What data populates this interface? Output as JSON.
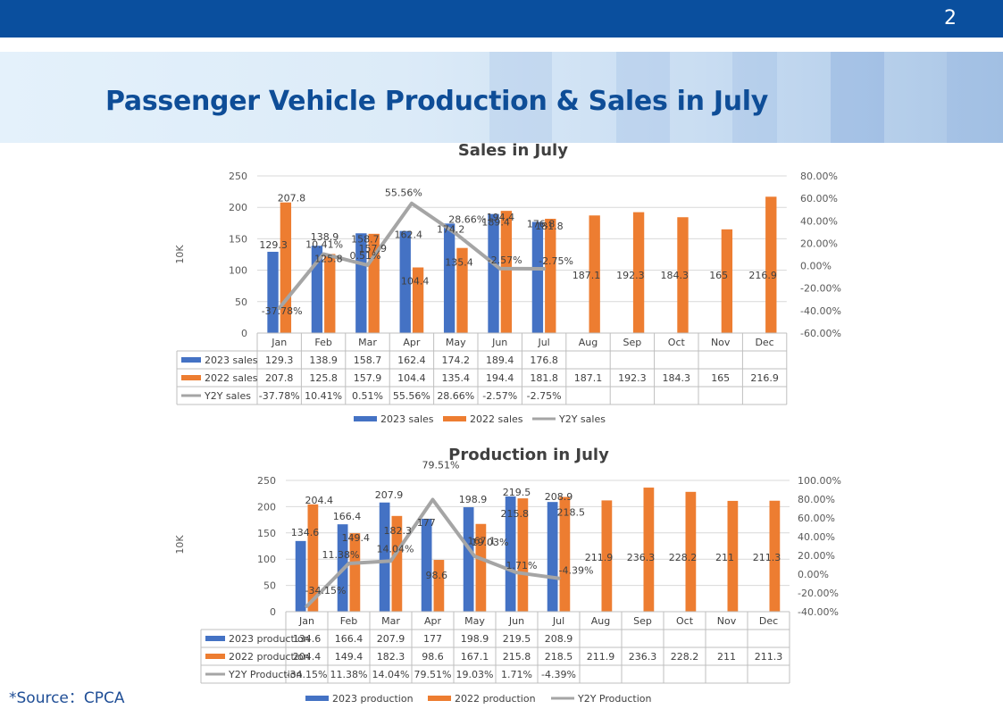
{
  "page_number": "2",
  "page_title": "Passenger Vehicle Production & Sales in July",
  "source": "*Source：CPCA",
  "colors": {
    "series_2023": "#4472c4",
    "series_2022": "#ed7d31",
    "yoy": "#a5a5a5",
    "title": "#0e4d97",
    "topbar": "#0a4f9e"
  },
  "chart_data": [
    {
      "type": "bar",
      "title": "Sales in July",
      "ylabel": "10K",
      "categories": [
        "Jan",
        "Feb",
        "Mar",
        "Apr",
        "May",
        "Jun",
        "Jul",
        "Aug",
        "Sep",
        "Oct",
        "Nov",
        "Dec"
      ],
      "ylim": [
        0,
        250
      ],
      "yticks": [
        "0",
        "50",
        "100",
        "150",
        "200",
        "250"
      ],
      "y2lim": [
        -60,
        80
      ],
      "y2ticks": [
        "-60.00%",
        "-40.00%",
        "-20.00%",
        "0.00%",
        "20.00%",
        "40.00%",
        "60.00%",
        "80.00%"
      ],
      "legend_position": "bottom",
      "series": [
        {
          "name": "2023 sales",
          "kind": "bar",
          "color": "#4472c4",
          "values": [
            129.3,
            138.9,
            158.7,
            162.4,
            174.2,
            189.4,
            176.8,
            null,
            null,
            null,
            null,
            null
          ],
          "labels": [
            "129.3",
            "138.9",
            "158.7",
            "162.4",
            "174.2",
            "189.4",
            "176.8",
            "",
            "",
            "",
            "",
            ""
          ]
        },
        {
          "name": "2022 sales",
          "kind": "bar",
          "color": "#ed7d31",
          "values": [
            207.8,
            125.8,
            157.9,
            104.4,
            135.4,
            194.4,
            181.8,
            187.1,
            192.3,
            184.3,
            165,
            216.9
          ],
          "labels": [
            "207.8",
            "125.8",
            "157.9",
            "104.4",
            "135.4",
            "194.4",
            "181.8",
            "187.1",
            "192.3",
            "184.3",
            "165",
            "216.9"
          ]
        },
        {
          "name": "Y2Y sales",
          "kind": "line",
          "axis": "secondary",
          "color": "#a5a5a5",
          "values": [
            -37.78,
            10.41,
            0.51,
            55.56,
            28.66,
            -2.57,
            -2.75,
            null,
            null,
            null,
            null,
            null
          ],
          "labels": [
            "-37.78%",
            "10.41%",
            "0.51%",
            "55.56%",
            "28.66%",
            "-2.57%",
            "-2.75%",
            "",
            "",
            "",
            "",
            ""
          ]
        }
      ]
    },
    {
      "type": "bar",
      "title": "Production in July",
      "ylabel": "10K",
      "categories": [
        "Jan",
        "Feb",
        "Mar",
        "Apr",
        "May",
        "Jun",
        "Jul",
        "Aug",
        "Sep",
        "Oct",
        "Nov",
        "Dec"
      ],
      "ylim": [
        0,
        250
      ],
      "yticks": [
        "0",
        "50",
        "100",
        "150",
        "200",
        "250"
      ],
      "y2lim": [
        -40,
        100
      ],
      "y2ticks": [
        "-40.00%",
        "-20.00%",
        "0.00%",
        "20.00%",
        "40.00%",
        "60.00%",
        "80.00%",
        "100.00%"
      ],
      "legend_position": "bottom",
      "series": [
        {
          "name": "2023 production",
          "kind": "bar",
          "color": "#4472c4",
          "values": [
            134.6,
            166.4,
            207.9,
            177,
            198.9,
            219.5,
            208.9,
            null,
            null,
            null,
            null,
            null
          ],
          "labels": [
            "134.6",
            "166.4",
            "207.9",
            "177",
            "198.9",
            "219.5",
            "208.9",
            "",
            "",
            "",
            "",
            ""
          ]
        },
        {
          "name": "2022 production",
          "kind": "bar",
          "color": "#ed7d31",
          "values": [
            204.4,
            149.4,
            182.3,
            98.6,
            167.1,
            215.8,
            218.5,
            211.9,
            236.3,
            228.2,
            211,
            211.3
          ],
          "labels": [
            "204.4",
            "149.4",
            "182.3",
            "98.6",
            "167.1",
            "215.8",
            "218.5",
            "211.9",
            "236.3",
            "228.2",
            "211",
            "211.3"
          ]
        },
        {
          "name": "Y2Y Production",
          "kind": "line",
          "axis": "secondary",
          "color": "#a5a5a5",
          "values": [
            -34.15,
            11.38,
            14.04,
            79.51,
            19.03,
            1.71,
            -4.39,
            null,
            null,
            null,
            null,
            null
          ],
          "labels": [
            "-34.15%",
            "11.38%",
            "14.04%",
            "79.51%",
            "19.03%",
            "1.71%",
            "-4.39%",
            "",
            "",
            "",
            "",
            ""
          ]
        }
      ]
    }
  ]
}
